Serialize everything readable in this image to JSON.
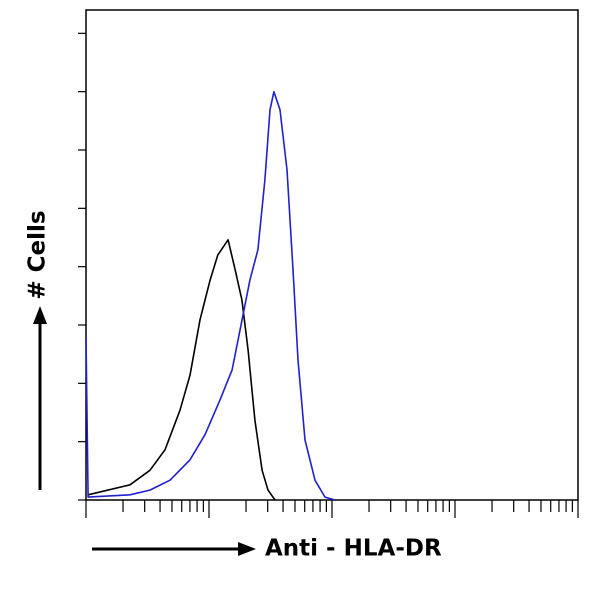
{
  "chart_data": {
    "type": "line",
    "x_label": "Anti - HLA-DR",
    "y_label": "# Cells",
    "x_scale": "log",
    "xlim": [
      1,
      10000
    ],
    "xticks": [
      1,
      2,
      3,
      4,
      5,
      6,
      7,
      8,
      9,
      10,
      20,
      30,
      40,
      50,
      60,
      70,
      80,
      90,
      100,
      200,
      300,
      400,
      500,
      600,
      700,
      800,
      900,
      1000,
      2000,
      3000,
      4000,
      5000,
      6000,
      7000,
      8000,
      9000,
      10000
    ],
    "ylim": [
      0,
      8.4
    ],
    "yticks": [
      0,
      1,
      2,
      3,
      4,
      5,
      6,
      7,
      8
    ],
    "series": [
      {
        "color": "#000000",
        "x": [
          1.04,
          2.28,
          3.31,
          4.39,
          5.81,
          7.01,
          8.45,
          10.2,
          11.8,
          14.3,
          16.3,
          18.5,
          20.8,
          23.6,
          27.0,
          30.2,
          34.4
        ],
        "values": [
          0.09,
          0.26,
          0.51,
          0.86,
          1.54,
          2.14,
          3.09,
          3.77,
          4.2,
          4.46,
          3.95,
          3.43,
          2.57,
          1.37,
          0.51,
          0.17,
          0
        ]
      },
      {
        "color": "#2020d0",
        "x": [
          1,
          1.04,
          2.28,
          3.31,
          4.82,
          7.01,
          9.28,
          12.3,
          15.4,
          17.9,
          21.5,
          25.0,
          28.5,
          31.3,
          33.7,
          37.8,
          43.1,
          48.2,
          52.9,
          60.3,
          72.8,
          87.7,
          106
        ],
        "values": [
          2.78,
          0.05,
          0.09,
          0.17,
          0.34,
          0.69,
          1.12,
          1.72,
          2.23,
          2.92,
          3.77,
          4.29,
          5.49,
          6.69,
          7.0,
          6.69,
          5.66,
          3.95,
          2.4,
          1.03,
          0.34,
          0.05,
          0
        ]
      }
    ]
  }
}
